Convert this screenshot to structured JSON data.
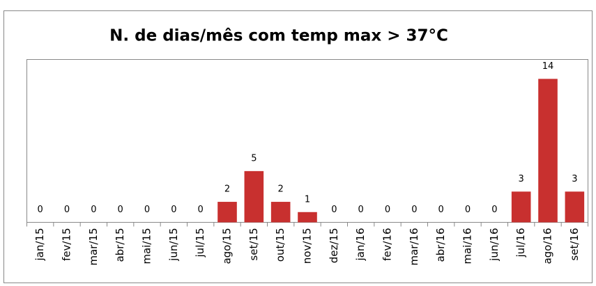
{
  "chart_data": {
    "type": "bar",
    "title": "N. de dias/mês com temp max > 37°C",
    "categories": [
      "jan/15",
      "fev/15",
      "mar/15",
      "abr/15",
      "mai/15",
      "jun/15",
      "jul/15",
      "ago/15",
      "set/15",
      "out/15",
      "nov/15",
      "dez/15",
      "jan/16",
      "fev/16",
      "mar/16",
      "abr/16",
      "mai/16",
      "jun/16",
      "jul/16",
      "ago/16",
      "set/16"
    ],
    "values": [
      0,
      0,
      0,
      0,
      0,
      0,
      0,
      2,
      5,
      2,
      1,
      0,
      0,
      0,
      0,
      0,
      0,
      0,
      3,
      14,
      3
    ],
    "color": "#c8302f"
  }
}
